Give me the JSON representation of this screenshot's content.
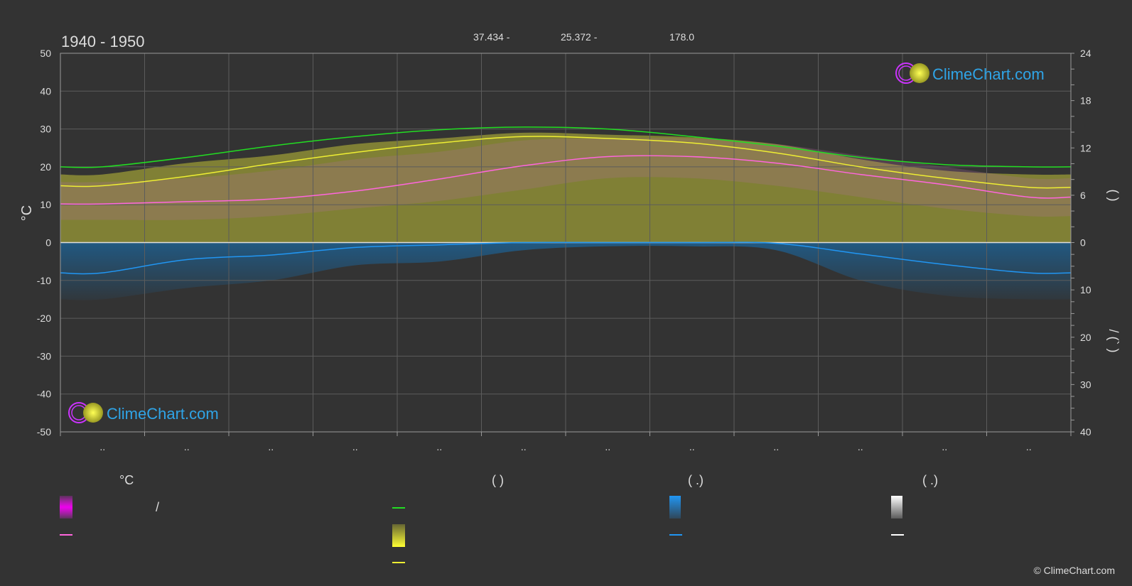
{
  "period": "1940 - 1950",
  "header_stats": [
    "37.434 -",
    "25.372 -",
    "178.0"
  ],
  "brand": "ClimeChart.com",
  "copyright": "© ClimeChart.com",
  "left_axis_label": "°C",
  "colors": {
    "daylight": "#22dd22",
    "sunshine": "#eeee33",
    "temp_avg": "#ff66dd",
    "precip": "#2196f3",
    "snow": "#ffffff",
    "brand": "#2fa4e7"
  },
  "legend": {
    "headers": [
      "°C",
      "(          )",
      "(   .)",
      "(   .)"
    ],
    "temp_slash": "/"
  },
  "right_axis_top_label": "(   )",
  "right_axis_bottom_label": "/  (`   )",
  "chart_data": {
    "type": "line",
    "title": "1940 - 1950",
    "x": [
      0,
      1,
      2,
      3,
      4,
      5,
      6,
      7,
      8,
      9,
      10,
      11
    ],
    "month_labels": [
      "..",
      "..",
      "..",
      "..",
      "..",
      "..",
      "..",
      "..",
      "..",
      "..",
      "..",
      ".."
    ],
    "y_left_ticks": [
      50,
      40,
      30,
      20,
      10,
      0,
      -10,
      -20,
      -30,
      -40,
      -50
    ],
    "y_right_top_ticks": [
      24,
      18,
      12,
      6,
      0
    ],
    "y_right_bottom_ticks": [
      10,
      20,
      30,
      40
    ],
    "ylim_left": [
      -50,
      50
    ],
    "series": [
      {
        "key": "daylight",
        "values": [
          20.0,
          22.5,
          25.5,
          28.0,
          29.8,
          30.5,
          30.0,
          28.0,
          25.5,
          22.5,
          20.6,
          20.0
        ]
      },
      {
        "key": "sunshine_avg",
        "values": [
          15.0,
          17.5,
          20.8,
          23.8,
          26.3,
          28.0,
          27.5,
          26.3,
          23.7,
          20.0,
          17.0,
          14.6
        ]
      },
      {
        "key": "temp_avg",
        "values": [
          10.2,
          10.8,
          11.5,
          13.6,
          16.8,
          20.3,
          22.7,
          22.7,
          21.0,
          18.0,
          15.3,
          12.0
        ]
      },
      {
        "key": "precip_line",
        "values": [
          -8.0,
          -4.5,
          -3.3,
          -1.3,
          -0.6,
          0,
          0,
          0,
          -0.2,
          -3.0,
          -5.8,
          -8.0
        ]
      },
      {
        "key": "sunshine_band",
        "values": [
          18,
          21,
          23,
          26,
          27.5,
          29,
          28.5,
          27.8,
          26,
          22,
          19,
          18
        ]
      },
      {
        "key": "temp_band_top",
        "values": [
          16,
          17,
          19,
          22,
          24,
          27,
          27.5,
          27.5,
          26,
          23,
          20,
          17
        ]
      },
      {
        "key": "temp_band_bottom",
        "values": [
          6,
          6,
          7,
          9,
          11,
          14,
          17,
          17,
          15,
          12,
          9,
          7
        ]
      },
      {
        "key": "precip_band",
        "values": [
          -15,
          -12,
          -10,
          -6,
          -5,
          -2,
          -1,
          -1,
          -2,
          -10,
          -14,
          -15
        ]
      }
    ]
  }
}
